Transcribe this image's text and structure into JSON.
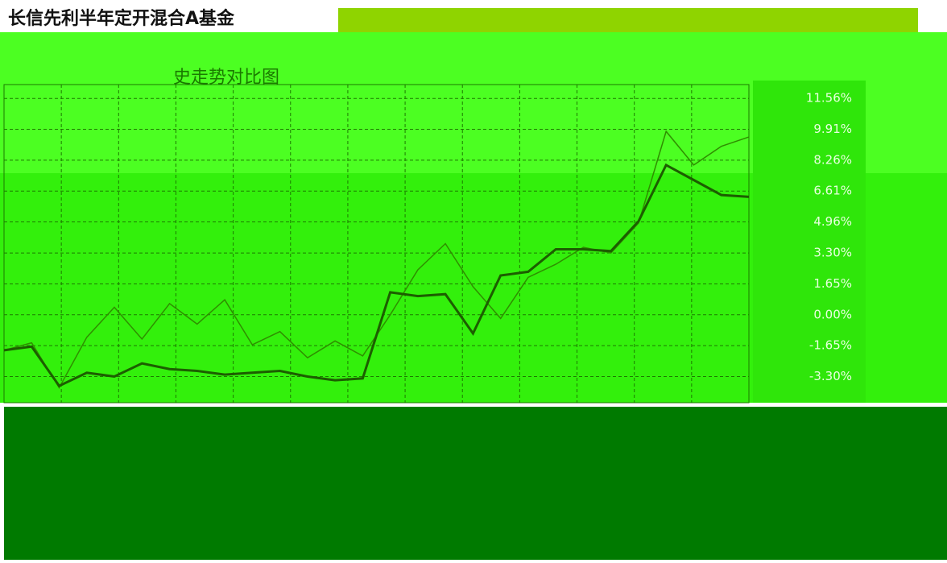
{
  "chart_data": {
    "type": "line",
    "title": "长信先利半年定开混合A基金",
    "subtitle": "史走势对比图",
    "series": [
      {
        "color": "#2f8f00",
        "values": [
          -1.9,
          -1.5,
          -3.9,
          -1.2,
          0.4,
          -1.3,
          0.6,
          -0.5,
          0.8,
          -1.6,
          -0.9,
          -2.3,
          -1.4,
          -2.2,
          0.0,
          2.4,
          3.8,
          1.5,
          -0.2,
          2.0,
          2.7,
          3.6,
          3.3,
          4.9,
          9.8,
          8.0,
          9.0,
          9.5
        ]
      },
      {
        "color": "#1c5e00",
        "values": [
          -1.9,
          -1.7,
          -3.8,
          -3.1,
          -3.3,
          -2.6,
          -2.9,
          -3.0,
          -3.2,
          -3.1,
          -3.0,
          -3.3,
          -3.5,
          -3.4,
          1.2,
          1.0,
          1.1,
          -1.0,
          2.1,
          2.3,
          3.5,
          3.5,
          3.4,
          5.0,
          8.0,
          7.2,
          6.4,
          6.3
        ]
      }
    ],
    "ylim": [
      -4.7,
      12.3
    ],
    "yticks": [
      {
        "value": 11.56,
        "label": "11.56%"
      },
      {
        "value": 9.91,
        "label": "9.91%"
      },
      {
        "value": 8.26,
        "label": "8.26%"
      },
      {
        "value": 6.61,
        "label": "6.61%"
      },
      {
        "value": 4.96,
        "label": "4.96%"
      },
      {
        "value": 3.3,
        "label": "3.30%"
      },
      {
        "value": 1.65,
        "label": "1.65%"
      },
      {
        "value": 0.0,
        "label": "0.00%"
      },
      {
        "value": -1.65,
        "label": "-1.65%"
      },
      {
        "value": -3.3,
        "label": "-3.30%"
      }
    ],
    "grid": true
  }
}
